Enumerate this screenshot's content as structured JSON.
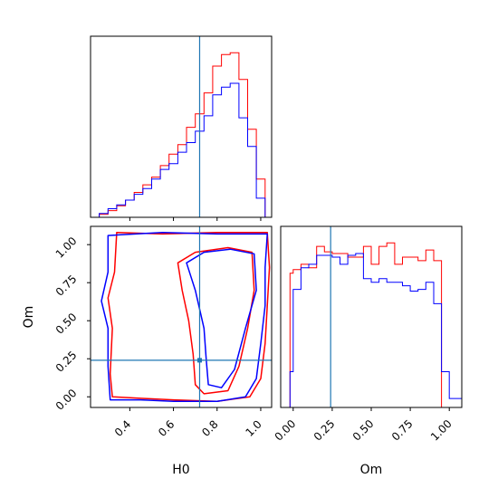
{
  "colors": {
    "series_a": "#ff0000",
    "series_b": "#0000ff",
    "truth": "#1f77b4",
    "axes": "#000000"
  },
  "chart_data": {
    "type": "corner",
    "parameters": [
      "H0",
      "Om"
    ],
    "truths": {
      "H0": 0.72,
      "Om": 0.24
    },
    "panels": [
      {
        "id": "hist-h0",
        "type": "histogram",
        "xlim": [
          0.22,
          1.05
        ],
        "x_ticks": [
          0.4,
          0.6,
          0.8,
          1.0
        ],
        "x_tick_labels_shown": false,
        "y_ticks_shown": false,
        "bin_edges": [
          0.22,
          0.26,
          0.3,
          0.34,
          0.38,
          0.42,
          0.46,
          0.5,
          0.54,
          0.58,
          0.62,
          0.66,
          0.7,
          0.74,
          0.78,
          0.82,
          0.86,
          0.9,
          0.94,
          0.98,
          1.02,
          1.05
        ],
        "series": [
          {
            "values": [
              0,
              0.015,
              0.035,
              0.06,
              0.09,
              0.13,
              0.17,
              0.21,
              0.27,
              0.33,
              0.38,
              0.47,
              0.54,
              0.65,
              0.79,
              0.85,
              0.86,
              0.72,
              0.46,
              0.2,
              0.0
            ]
          },
          {
            "values": [
              0,
              0.02,
              0.045,
              0.065,
              0.09,
              0.12,
              0.15,
              0.2,
              0.25,
              0.28,
              0.34,
              0.39,
              0.45,
              0.53,
              0.64,
              0.68,
              0.7,
              0.52,
              0.37,
              0.1,
              0.0
            ]
          }
        ]
      },
      {
        "id": "contour-h0-om",
        "type": "contour",
        "xlabel": "H0",
        "ylabel": "Om",
        "xlim": [
          0.22,
          1.05
        ],
        "ylim": [
          -0.07,
          1.12
        ],
        "x_ticks": [
          0.4,
          0.6,
          0.8,
          1.0
        ],
        "x_tick_labels": [
          "0.4",
          "0.6",
          "0.8",
          "1.0"
        ],
        "y_ticks": [
          0.0,
          0.25,
          0.5,
          0.75,
          1.0
        ],
        "y_tick_labels": [
          "0.00",
          "0.25",
          "0.50",
          "0.75",
          "1.00"
        ],
        "series": [
          {
            "contours": [
              [
                [
                  0.34,
                  1.08
                ],
                [
                  0.55,
                  1.07
                ],
                [
                  0.8,
                  1.08
                ],
                [
                  1.03,
                  1.08
                ],
                [
                  1.04,
                  0.85
                ],
                [
                  1.03,
                  0.6
                ],
                [
                  1.02,
                  0.35
                ],
                [
                  1.0,
                  0.12
                ],
                [
                  0.95,
                  0.0
                ],
                [
                  0.8,
                  -0.03
                ],
                [
                  0.6,
                  -0.02
                ],
                [
                  0.45,
                  -0.01
                ],
                [
                  0.32,
                  0.0
                ],
                [
                  0.31,
                  0.15
                ],
                [
                  0.32,
                  0.45
                ],
                [
                  0.3,
                  0.65
                ],
                [
                  0.33,
                  0.82
                ],
                [
                  0.34,
                  1.08
                ]
              ],
              [
                [
                  0.62,
                  0.88
                ],
                [
                  0.7,
                  0.95
                ],
                [
                  0.85,
                  0.98
                ],
                [
                  0.96,
                  0.95
                ],
                [
                  0.97,
                  0.7
                ],
                [
                  0.94,
                  0.45
                ],
                [
                  0.9,
                  0.2
                ],
                [
                  0.85,
                  0.04
                ],
                [
                  0.74,
                  0.02
                ],
                [
                  0.7,
                  0.08
                ],
                [
                  0.69,
                  0.28
                ],
                [
                  0.67,
                  0.5
                ],
                [
                  0.64,
                  0.7
                ],
                [
                  0.62,
                  0.88
                ]
              ]
            ]
          },
          {
            "contours": [
              [
                [
                  0.3,
                  1.06
                ],
                [
                  0.55,
                  1.08
                ],
                [
                  0.8,
                  1.07
                ],
                [
                  1.03,
                  1.07
                ],
                [
                  1.02,
                  0.85
                ],
                [
                  1.02,
                  0.6
                ],
                [
                  1.0,
                  0.35
                ],
                [
                  0.98,
                  0.12
                ],
                [
                  0.93,
                  0.0
                ],
                [
                  0.8,
                  -0.03
                ],
                [
                  0.6,
                  -0.03
                ],
                [
                  0.45,
                  -0.02
                ],
                [
                  0.31,
                  -0.02
                ],
                [
                  0.3,
                  0.2
                ],
                [
                  0.3,
                  0.45
                ],
                [
                  0.27,
                  0.63
                ],
                [
                  0.3,
                  0.82
                ],
                [
                  0.3,
                  1.06
                ]
              ],
              [
                [
                  0.66,
                  0.88
                ],
                [
                  0.74,
                  0.95
                ],
                [
                  0.86,
                  0.97
                ],
                [
                  0.97,
                  0.94
                ],
                [
                  0.98,
                  0.7
                ],
                [
                  0.93,
                  0.45
                ],
                [
                  0.88,
                  0.18
                ],
                [
                  0.82,
                  0.06
                ],
                [
                  0.76,
                  0.08
                ],
                [
                  0.75,
                  0.25
                ],
                [
                  0.74,
                  0.45
                ],
                [
                  0.7,
                  0.7
                ],
                [
                  0.66,
                  0.88
                ]
              ]
            ]
          }
        ]
      },
      {
        "id": "hist-om",
        "type": "histogram",
        "xlabel": "Om",
        "xlim": [
          -0.08,
          1.08
        ],
        "x_ticks": [
          0.0,
          0.25,
          0.5,
          0.75,
          1.0
        ],
        "x_tick_labels": [
          "0.00",
          "0.25",
          "0.50",
          "0.75",
          "1.00"
        ],
        "y_ticks_shown": false,
        "bin_edges": [
          -0.08,
          -0.02,
          0.0,
          0.05,
          0.1,
          0.15,
          0.2,
          0.25,
          0.3,
          0.35,
          0.4,
          0.45,
          0.5,
          0.55,
          0.6,
          0.65,
          0.7,
          0.75,
          0.8,
          0.85,
          0.9,
          0.95,
          1.0,
          1.03,
          1.08
        ],
        "series": [
          {
            "values": [
              0,
              0.75,
              0.77,
              0.8,
              0.78,
              0.9,
              0.87,
              0.86,
              0.86,
              0.84,
              0.84,
              0.9,
              0.8,
              0.9,
              0.92,
              0.8,
              0.84,
              0.84,
              0.82,
              0.88,
              0.82,
              0.0,
              0.0,
              0.0
            ]
          },
          {
            "values": [
              0,
              0.2,
              0.66,
              0.78,
              0.8,
              0.85,
              0.85,
              0.84,
              0.8,
              0.85,
              0.86,
              0.72,
              0.7,
              0.72,
              0.7,
              0.7,
              0.68,
              0.65,
              0.66,
              0.7,
              0.58,
              0.2,
              0.05,
              0.05
            ]
          }
        ]
      }
    ]
  }
}
